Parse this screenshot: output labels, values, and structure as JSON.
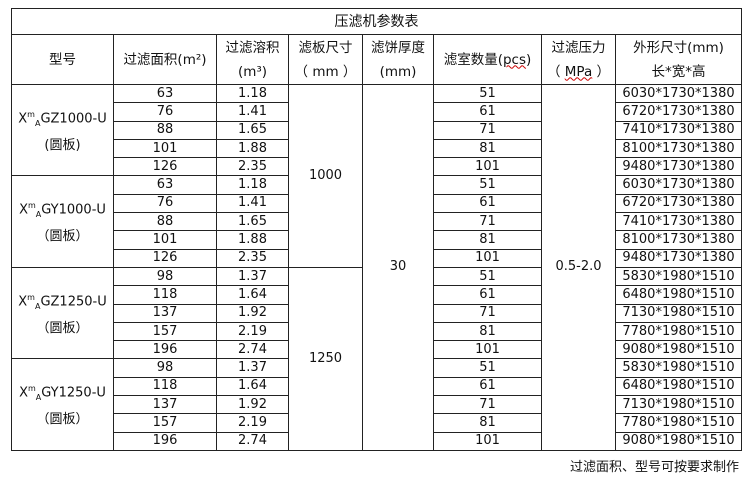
{
  "title": "压滤机参数表",
  "headers": {
    "model": "型号",
    "area": "过滤面积(m²)",
    "volume_1": "过滤溶积",
    "volume_2": "(m³)",
    "plate_1": "滤板尺寸",
    "plate_2": "（ mm ）",
    "cake_1": "滤饼厚度",
    "cake_2": "(mm)",
    "chambers_1": "滤室数量(",
    "chambers_unit": "pcs",
    "chambers_2": ")",
    "pressure_1": "过滤压力",
    "pressure_open": "（ ",
    "pressure_unit": "MPa",
    "pressure_close": " ）",
    "dims_1": "外形尺寸(mm)",
    "dims_2": "长*宽*高"
  },
  "cake_thickness": "30",
  "pressure": "0.5-2.0",
  "groups": [
    {
      "model_prefix": "X",
      "model_sup": "m",
      "model_sub": "A",
      "model_suffix": "GZ1000-U",
      "model_note": "(圆板)",
      "plate": "1000",
      "rows": [
        [
          "63",
          "1.18",
          "51",
          "6030*1730*1380"
        ],
        [
          "76",
          "1.41",
          "61",
          "6720*1730*1380"
        ],
        [
          "88",
          "1.65",
          "71",
          "7410*1730*1380"
        ],
        [
          "101",
          "1.88",
          "81",
          "8100*1730*1380"
        ],
        [
          "126",
          "2.35",
          "101",
          "9480*1730*1380"
        ]
      ]
    },
    {
      "model_prefix": "X",
      "model_sup": "m",
      "model_sub": "A",
      "model_suffix": "GY1000-U",
      "model_note": "（圆板）",
      "plate": "1000",
      "rows": [
        [
          "63",
          "1.18",
          "51",
          "6030*1730*1380"
        ],
        [
          "76",
          "1.41",
          "61",
          "6720*1730*1380"
        ],
        [
          "88",
          "1.65",
          "71",
          "7410*1730*1380"
        ],
        [
          "101",
          "1.88",
          "81",
          "8100*1730*1380"
        ],
        [
          "126",
          "2.35",
          "101",
          "9480*1730*1380"
        ]
      ]
    },
    {
      "model_prefix": "X",
      "model_sup": "m",
      "model_sub": "A",
      "model_suffix": "GZ1250-U",
      "model_note": "（圆板）",
      "plate": "1250",
      "rows": [
        [
          "98",
          "1.37",
          "51",
          "5830*1980*1510"
        ],
        [
          "118",
          "1.64",
          "61",
          "6480*1980*1510"
        ],
        [
          "137",
          "1.92",
          "71",
          "7130*1980*1510"
        ],
        [
          "157",
          "2.19",
          "81",
          "7780*1980*1510"
        ],
        [
          "196",
          "2.74",
          "101",
          "9080*1980*1510"
        ]
      ]
    },
    {
      "model_prefix": "X",
      "model_sup": "m",
      "model_sub": "A",
      "model_suffix": "GY1250-U",
      "model_note": "（圆板）",
      "plate": "1250",
      "rows": [
        [
          "98",
          "1.37",
          "51",
          "5830*1980*1510"
        ],
        [
          "118",
          "1.64",
          "61",
          "6480*1980*1510"
        ],
        [
          "137",
          "1.92",
          "71",
          "7130*1980*1510"
        ],
        [
          "157",
          "2.19",
          "81",
          "7780*1980*1510"
        ],
        [
          "196",
          "2.74",
          "101",
          "9080*1980*1510"
        ]
      ]
    }
  ],
  "caption": "过滤面积、型号可按要求制作"
}
